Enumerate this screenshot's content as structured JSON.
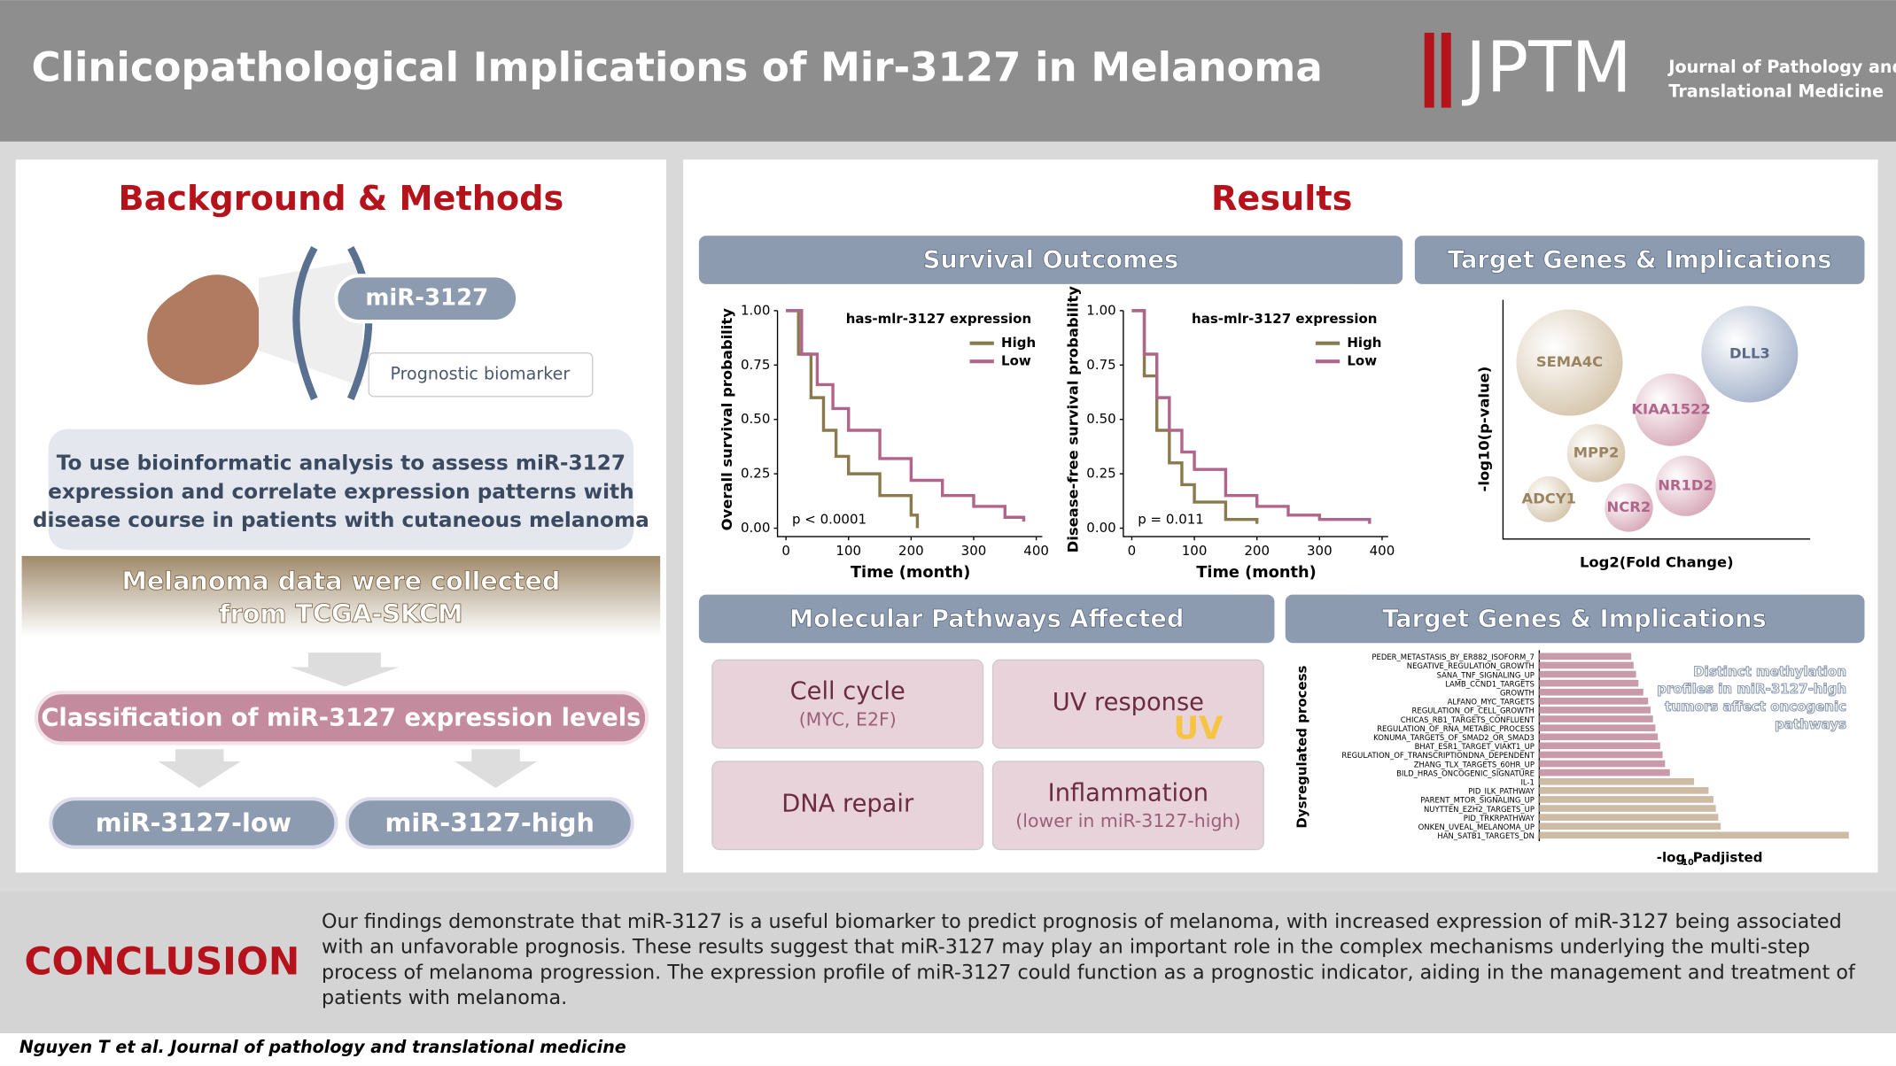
{
  "header": {
    "title": "Clinicopathological Implications of Mir-3127 in Melanoma",
    "logo": "JPTM",
    "journal_line1": "Journal of Pathology and",
    "journal_line2": "Translational Medicine"
  },
  "left": {
    "heading": "Background & Methods",
    "mir": "miR-3127",
    "biomarker": "Prognostic biomarker",
    "aim_lines": [
      "To use bioinformatic analysis to assess miR-3127",
      "expression and correlate expression patterns with",
      "disease course in patients with cutaneous melanoma"
    ],
    "data_lines": [
      "Melanoma data were collected",
      "from TCGA-SKCM"
    ],
    "classification": "Classification of miR-3127 expression levels",
    "low": "miR-3127-low",
    "high": "miR-3127-high"
  },
  "results": {
    "heading": "Results",
    "survival_title": "Survival Outcomes",
    "target_title": "Target Genes & Implications",
    "pathways_title": "Molecular Pathways Affected",
    "target_title2": "Target Genes & Implications"
  },
  "km": [
    {
      "ylabel": "Overall survival probability",
      "xlabel": "Time (month)",
      "legend_title": "has-mlr-3127 expression",
      "p_text": "p < 0.0001",
      "xlim": [
        0,
        400
      ],
      "ylim": [
        0,
        1
      ],
      "xticks": [
        0,
        100,
        200,
        300,
        400
      ],
      "yticks": [
        {
          "value": 0,
          "label": "0.00"
        },
        {
          "value": 0.25,
          "label": "0.25"
        },
        {
          "value": 0.5,
          "label": "0.50"
        },
        {
          "value": 0.75,
          "label": "0.75"
        },
        {
          "value": 1,
          "label": "1.00"
        }
      ],
      "series": [
        {
          "name": "High",
          "color": "#8b7a4e",
          "x": [
            0,
            20,
            40,
            60,
            80,
            100,
            150,
            200,
            210
          ],
          "values": [
            1,
            0.8,
            0.6,
            0.45,
            0.33,
            0.25,
            0.15,
            0.06,
            0
          ]
        },
        {
          "name": "Low",
          "color": "#b0668a",
          "x": [
            0,
            25,
            50,
            75,
            100,
            150,
            200,
            250,
            300,
            350,
            380
          ],
          "values": [
            1,
            0.8,
            0.66,
            0.55,
            0.45,
            0.32,
            0.22,
            0.15,
            0.1,
            0.05,
            0.03
          ]
        }
      ]
    },
    {
      "ylabel": "Disease-free survival probability",
      "xlabel": "Time (month)",
      "legend_title": "has-mlr-3127 expression",
      "p_text": "p = 0.011",
      "xlim": [
        0,
        400
      ],
      "ylim": [
        0,
        1
      ],
      "xticks": [
        0,
        100,
        200,
        300,
        400
      ],
      "yticks": [
        {
          "value": 0,
          "label": "0.00"
        },
        {
          "value": 0.25,
          "label": "0.25"
        },
        {
          "value": 0.5,
          "label": "0.50"
        },
        {
          "value": 0.75,
          "label": "0.75"
        },
        {
          "value": 1,
          "label": "1.00"
        }
      ],
      "series": [
        {
          "name": "High",
          "color": "#8b7a4e",
          "x": [
            0,
            20,
            40,
            60,
            80,
            100,
            150,
            200
          ],
          "values": [
            1,
            0.7,
            0.45,
            0.3,
            0.2,
            0.12,
            0.04,
            0.02
          ]
        },
        {
          "name": "Low",
          "color": "#b0668a",
          "x": [
            0,
            20,
            40,
            60,
            80,
            100,
            150,
            200,
            250,
            300,
            380
          ],
          "values": [
            1,
            0.8,
            0.6,
            0.45,
            0.35,
            0.27,
            0.15,
            0.1,
            0.06,
            0.04,
            0.02
          ]
        }
      ]
    }
  ],
  "bubbles": {
    "ylabel": "-log10(p-value)",
    "xlabel": "Log2(Fold Change)",
    "genes": [
      "SEMA4C",
      "DLL3",
      "KIAA1522",
      "MPP2",
      "NR1D2",
      "ADCY1",
      "NCR2"
    ]
  },
  "pathways": [
    {
      "name": "Cell cycle",
      "note": "(MYC, E2F)"
    },
    {
      "name": "UV response",
      "icon": "UV"
    },
    {
      "name": "DNA repair"
    },
    {
      "name": "Inflammation",
      "note": "(lower in miR-3127-high)"
    }
  ],
  "bars": {
    "ylabel": "Dysregulated process",
    "xlabel_main": "-log",
    "xlabel_sub": "10",
    "xlabel_end": "Padjisted",
    "note_lines": [
      "Distinct methylation",
      "profiles in miR-3127-high",
      "tumors affect oncogenic",
      "pathways"
    ],
    "categories": [
      "PEDER_METASTASIS_BY_ER882_ISOFORM_7",
      "NEGATIVE_REGULATION_GROWTH",
      "SANA_TNF_SIGNALING_UP",
      "LAMB_CCND1_TARGETS",
      "GROWTH",
      "ALFANO_MYC_TARGETS",
      "REGULATION_OF_CELL_GROWTH",
      "CHICAS_RB1_TARGETS_CONFLUENT",
      "REGULATION_OF_RNA_METABIC_PROCESS",
      "KONUMA_TARGETS_OF_SMAD2_OR_SMAD3",
      "BHAT_ESR1_TARGET_VIAKT1_UP",
      "REGULATION_OF_TRANSCRIPTIONDNA_DEPENDENT",
      "ZHANG_TLX_TARGETS_60HR_UP",
      "BILD_HRAS_ONCOGENIC_SIGNATURE",
      "IL-1",
      "PID_ILK_PATHWAY",
      "PARENT_MTOR_SIGNALING_UP",
      "NUYTTEN_EZH2_TARGETS_UP",
      "PID_TRKRPATHWAY",
      "ONKEN_UVEAL_MELANOMA_UP",
      "HAN_SATB1_TARGETS_DN"
    ],
    "values": [
      3.8,
      3.9,
      4.0,
      4.1,
      4.3,
      4.5,
      4.6,
      4.7,
      4.8,
      4.9,
      5.0,
      5.1,
      5.2,
      5.4,
      6.4,
      7.0,
      7.2,
      7.3,
      7.4,
      7.5,
      12.8
    ],
    "colors": [
      "#c99aaa",
      "#c99aaa",
      "#c99aaa",
      "#c99aaa",
      "#c99aaa",
      "#c99aaa",
      "#c99aaa",
      "#c99aaa",
      "#c99aaa",
      "#c99aaa",
      "#c99aaa",
      "#c99aaa",
      "#c99aaa",
      "#c99aaa",
      "#cdbba3",
      "#cdbba3",
      "#cdbba3",
      "#cdbba3",
      "#cdbba3",
      "#cdbba3",
      "#cdbba3"
    ]
  },
  "conclusion": {
    "title": "CONCLUSION",
    "lines": [
      "Our findings demonstrate that miR-3127 is a useful biomarker to predict prognosis of melanoma, with increased expression of miR-3127 being associated",
      "with an unfavorable prognosis. These results suggest that miR-3127 may play an important role in the complex mechanisms underlying the multi-step",
      "process of melanoma progression. The expression profile of miR-3127 could function as a prognostic indicator, aiding in the management and treatment of",
      "patients with melanoma."
    ]
  },
  "citation": "Nguyen T et al. Journal of pathology and translational medicine"
}
